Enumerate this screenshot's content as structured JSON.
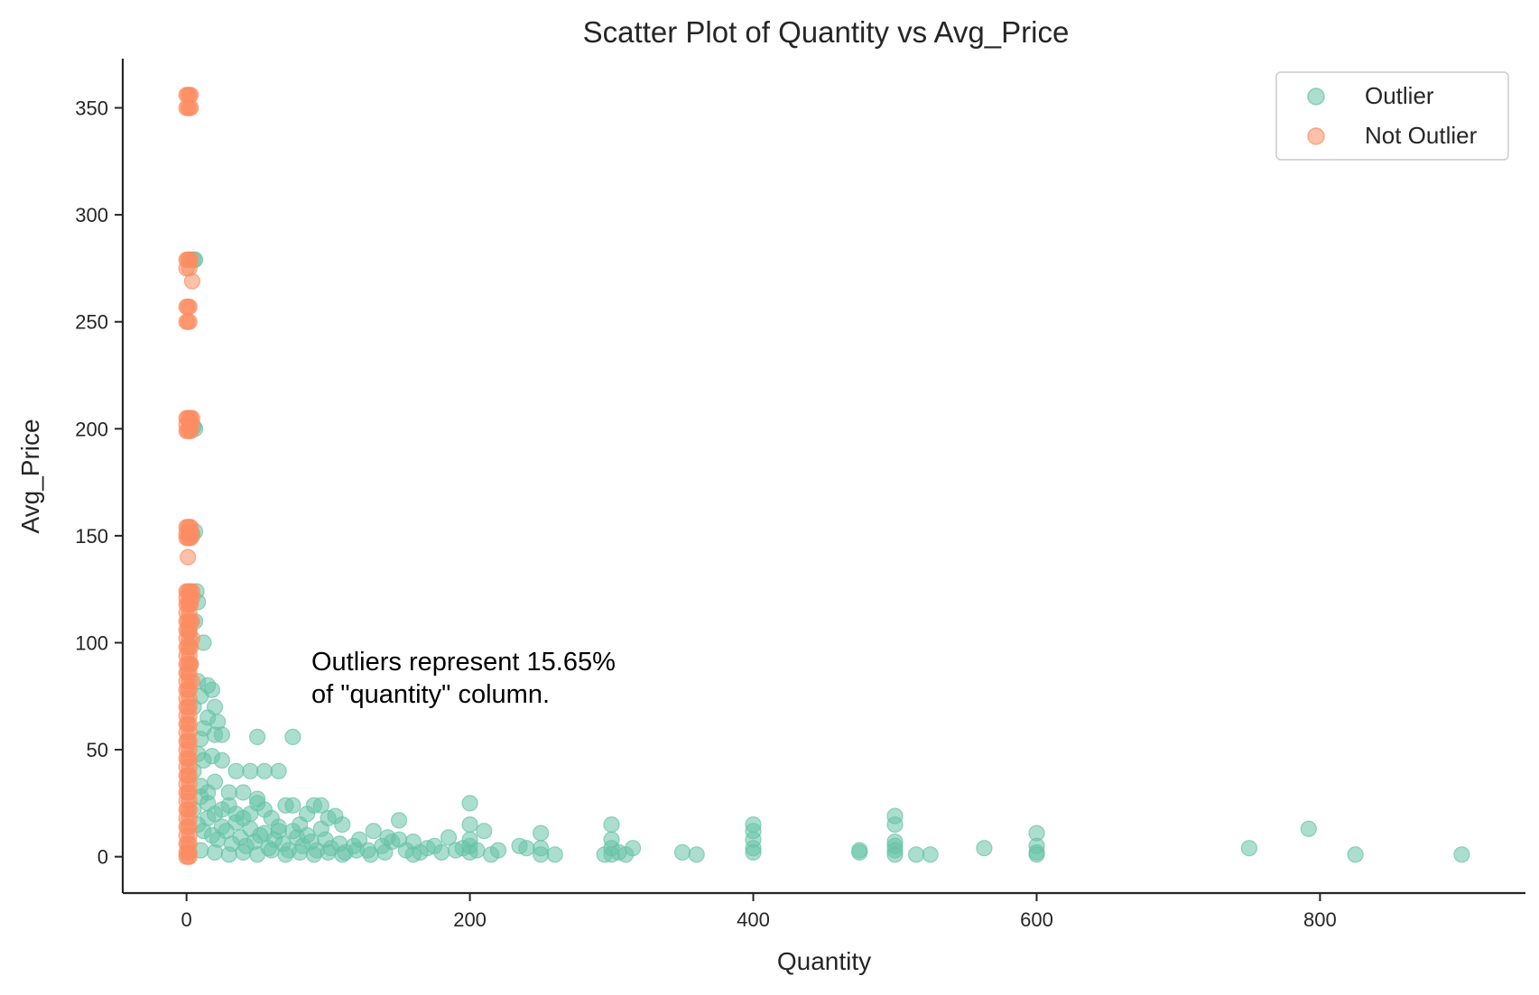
{
  "chart_data": {
    "type": "scatter",
    "title": "Scatter Plot of Quantity vs Avg_Price",
    "xlabel": "Quantity",
    "ylabel": "Avg_Price",
    "xlim": [
      -45,
      945
    ],
    "ylim": [
      -17,
      373
    ],
    "xticks": [
      0,
      200,
      400,
      600,
      800
    ],
    "yticks": [
      0,
      50,
      100,
      150,
      200,
      250,
      300,
      350
    ],
    "grid": false,
    "legend": {
      "position": "top-right"
    },
    "annotation": {
      "lines": [
        "Outliers represent 15.65%",
        "of \"quantity\" column."
      ],
      "x": 90,
      "y": 90
    },
    "series": [
      {
        "name": "Outlier",
        "color": "#66c2a5",
        "points": [
          [
            5,
            279
          ],
          [
            6,
            279
          ],
          [
            5,
            201
          ],
          [
            6,
            200
          ],
          [
            4,
            150
          ],
          [
            6,
            152
          ],
          [
            7,
            124
          ],
          [
            8,
            119
          ],
          [
            12,
            100
          ],
          [
            8,
            82
          ],
          [
            15,
            80
          ],
          [
            18,
            78
          ],
          [
            20,
            70
          ],
          [
            22,
            63
          ],
          [
            12,
            60
          ],
          [
            20,
            57
          ],
          [
            25,
            57
          ],
          [
            50,
            56
          ],
          [
            75,
            56
          ],
          [
            8,
            48
          ],
          [
            12,
            45
          ],
          [
            18,
            47
          ],
          [
            25,
            45
          ],
          [
            35,
            40
          ],
          [
            45,
            40
          ],
          [
            55,
            40
          ],
          [
            65,
            40
          ],
          [
            10,
            33
          ],
          [
            20,
            35
          ],
          [
            30,
            30
          ],
          [
            40,
            30
          ],
          [
            50,
            27
          ],
          [
            15,
            25
          ],
          [
            25,
            22
          ],
          [
            35,
            20
          ],
          [
            45,
            20
          ],
          [
            50,
            25
          ],
          [
            60,
            18
          ],
          [
            70,
            24
          ],
          [
            75,
            24
          ],
          [
            80,
            15
          ],
          [
            85,
            20
          ],
          [
            90,
            24
          ],
          [
            95,
            24
          ],
          [
            100,
            18
          ],
          [
            105,
            19
          ],
          [
            110,
            15
          ],
          [
            8,
            15
          ],
          [
            12,
            12
          ],
          [
            18,
            10
          ],
          [
            22,
            8
          ],
          [
            28,
            12
          ],
          [
            32,
            6
          ],
          [
            38,
            9
          ],
          [
            42,
            5
          ],
          [
            48,
            7
          ],
          [
            52,
            10
          ],
          [
            58,
            4
          ],
          [
            62,
            8
          ],
          [
            68,
            6
          ],
          [
            72,
            3
          ],
          [
            78,
            9
          ],
          [
            82,
            5
          ],
          [
            88,
            7
          ],
          [
            92,
            3
          ],
          [
            98,
            8
          ],
          [
            102,
            4
          ],
          [
            108,
            6
          ],
          [
            112,
            2
          ],
          [
            118,
            5
          ],
          [
            122,
            8
          ],
          [
            128,
            3
          ],
          [
            132,
            12
          ],
          [
            138,
            5
          ],
          [
            142,
            9
          ],
          [
            145,
            7
          ],
          [
            150,
            17
          ],
          [
            150,
            8
          ],
          [
            155,
            3
          ],
          [
            160,
            7
          ],
          [
            165,
            2
          ],
          [
            170,
            4
          ],
          [
            175,
            5
          ],
          [
            180,
            2
          ],
          [
            185,
            9
          ],
          [
            190,
            3
          ],
          [
            195,
            4
          ],
          [
            200,
            25
          ],
          [
            200,
            15
          ],
          [
            200,
            8
          ],
          [
            200,
            5
          ],
          [
            200,
            2
          ],
          [
            205,
            3
          ],
          [
            210,
            12
          ],
          [
            215,
            1
          ],
          [
            220,
            3
          ],
          [
            235,
            5
          ],
          [
            240,
            4
          ],
          [
            250,
            11
          ],
          [
            250,
            4
          ],
          [
            250,
            1
          ],
          [
            260,
            1
          ],
          [
            295,
            1
          ],
          [
            300,
            15
          ],
          [
            300,
            8
          ],
          [
            300,
            4
          ],
          [
            300,
            1
          ],
          [
            305,
            2
          ],
          [
            310,
            1
          ],
          [
            315,
            4
          ],
          [
            350,
            2
          ],
          [
            360,
            1
          ],
          [
            400,
            15
          ],
          [
            400,
            12
          ],
          [
            400,
            8
          ],
          [
            400,
            4
          ],
          [
            400,
            2
          ],
          [
            475,
            3
          ],
          [
            475,
            2
          ],
          [
            500,
            19
          ],
          [
            500,
            15
          ],
          [
            500,
            7
          ],
          [
            500,
            5
          ],
          [
            500,
            3
          ],
          [
            500,
            1
          ],
          [
            515,
            1
          ],
          [
            525,
            1
          ],
          [
            563,
            4
          ],
          [
            600,
            11
          ],
          [
            600,
            5
          ],
          [
            600,
            2
          ],
          [
            600,
            1
          ],
          [
            750,
            4
          ],
          [
            792,
            13
          ],
          [
            825,
            1
          ],
          [
            900,
            1
          ],
          [
            10,
            3
          ],
          [
            20,
            2
          ],
          [
            30,
            1
          ],
          [
            40,
            2
          ],
          [
            50,
            1
          ],
          [
            60,
            3
          ],
          [
            70,
            1
          ],
          [
            80,
            2
          ],
          [
            90,
            1
          ],
          [
            100,
            2
          ],
          [
            110,
            1
          ],
          [
            120,
            3
          ],
          [
            130,
            1
          ],
          [
            140,
            2
          ],
          [
            160,
            1
          ],
          [
            15,
            18
          ],
          [
            25,
            14
          ],
          [
            35,
            16
          ],
          [
            45,
            13
          ],
          [
            55,
            11
          ],
          [
            65,
            14
          ],
          [
            75,
            12
          ],
          [
            85,
            10
          ],
          [
            95,
            13
          ],
          [
            5,
            22
          ],
          [
            10,
            28
          ],
          [
            15,
            30
          ],
          [
            20,
            20
          ],
          [
            30,
            24
          ],
          [
            40,
            18
          ],
          [
            55,
            22
          ],
          [
            65,
            12
          ],
          [
            5,
            40
          ],
          [
            10,
            55
          ],
          [
            15,
            65
          ],
          [
            5,
            70
          ],
          [
            10,
            75
          ],
          [
            3,
            90
          ],
          [
            6,
            110
          ],
          [
            2,
            105
          ]
        ]
      },
      {
        "name": "Not Outlier",
        "color": "#fc8d62",
        "points": [
          [
            0,
            356
          ],
          [
            1,
            356
          ],
          [
            2,
            356
          ],
          [
            3,
            356
          ],
          [
            0,
            350
          ],
          [
            1,
            350
          ],
          [
            2,
            350
          ],
          [
            3,
            350
          ],
          [
            0,
            279
          ],
          [
            1,
            279
          ],
          [
            2,
            279
          ],
          [
            3,
            279
          ],
          [
            0,
            275
          ],
          [
            2,
            275
          ],
          [
            4,
            269
          ],
          [
            0,
            257
          ],
          [
            1,
            257
          ],
          [
            2,
            257
          ],
          [
            0,
            250
          ],
          [
            1,
            250
          ],
          [
            2,
            250
          ],
          [
            0,
            205
          ],
          [
            1,
            205
          ],
          [
            2,
            205
          ],
          [
            3,
            205
          ],
          [
            4,
            205
          ],
          [
            0,
            202
          ],
          [
            2,
            202
          ],
          [
            4,
            202
          ],
          [
            0,
            199
          ],
          [
            1,
            199
          ],
          [
            2,
            199
          ],
          [
            3,
            199
          ],
          [
            0,
            154
          ],
          [
            1,
            154
          ],
          [
            2,
            154
          ],
          [
            3,
            154
          ],
          [
            0,
            151
          ],
          [
            2,
            151
          ],
          [
            4,
            151
          ],
          [
            0,
            149
          ],
          [
            1,
            149
          ],
          [
            2,
            149
          ],
          [
            3,
            149
          ],
          [
            1,
            140
          ],
          [
            0,
            124
          ],
          [
            1,
            124
          ],
          [
            2,
            124
          ],
          [
            3,
            124
          ],
          [
            4,
            124
          ],
          [
            0,
            121
          ],
          [
            2,
            121
          ],
          [
            4,
            121
          ],
          [
            0,
            118
          ],
          [
            1,
            118
          ],
          [
            2,
            118
          ],
          [
            3,
            118
          ],
          [
            0,
            114
          ],
          [
            2,
            114
          ],
          [
            0,
            110
          ],
          [
            1,
            110
          ],
          [
            2,
            110
          ],
          [
            3,
            110
          ],
          [
            4,
            110
          ],
          [
            0,
            106
          ],
          [
            1,
            106
          ],
          [
            2,
            106
          ],
          [
            0,
            102
          ],
          [
            2,
            102
          ],
          [
            4,
            102
          ],
          [
            0,
            98
          ],
          [
            1,
            98
          ],
          [
            2,
            98
          ],
          [
            3,
            98
          ],
          [
            0,
            94
          ],
          [
            2,
            94
          ],
          [
            0,
            90
          ],
          [
            1,
            90
          ],
          [
            2,
            90
          ],
          [
            3,
            90
          ],
          [
            0,
            86
          ],
          [
            1,
            86
          ],
          [
            2,
            86
          ],
          [
            0,
            82
          ],
          [
            2,
            82
          ],
          [
            4,
            82
          ],
          [
            0,
            78
          ],
          [
            1,
            78
          ],
          [
            2,
            78
          ],
          [
            0,
            74
          ],
          [
            2,
            74
          ],
          [
            0,
            70
          ],
          [
            1,
            70
          ],
          [
            2,
            70
          ],
          [
            0,
            66
          ],
          [
            2,
            66
          ],
          [
            0,
            62
          ],
          [
            1,
            62
          ],
          [
            2,
            62
          ],
          [
            0,
            58
          ],
          [
            2,
            58
          ],
          [
            0,
            54
          ],
          [
            1,
            54
          ],
          [
            2,
            54
          ],
          [
            0,
            50
          ],
          [
            2,
            50
          ],
          [
            0,
            46
          ],
          [
            1,
            46
          ],
          [
            2,
            46
          ],
          [
            0,
            42
          ],
          [
            2,
            42
          ],
          [
            0,
            38
          ],
          [
            1,
            38
          ],
          [
            2,
            38
          ],
          [
            0,
            34
          ],
          [
            2,
            34
          ],
          [
            0,
            30
          ],
          [
            1,
            30
          ],
          [
            2,
            30
          ],
          [
            0,
            26
          ],
          [
            2,
            26
          ],
          [
            0,
            22
          ],
          [
            1,
            22
          ],
          [
            2,
            22
          ],
          [
            0,
            18
          ],
          [
            2,
            18
          ],
          [
            0,
            14
          ],
          [
            1,
            14
          ],
          [
            2,
            14
          ],
          [
            0,
            10
          ],
          [
            2,
            10
          ],
          [
            0,
            6
          ],
          [
            1,
            6
          ],
          [
            2,
            6
          ],
          [
            0,
            2
          ],
          [
            1,
            2
          ],
          [
            2,
            2
          ],
          [
            0,
            0
          ],
          [
            1,
            0
          ],
          [
            2,
            0
          ]
        ]
      }
    ]
  }
}
